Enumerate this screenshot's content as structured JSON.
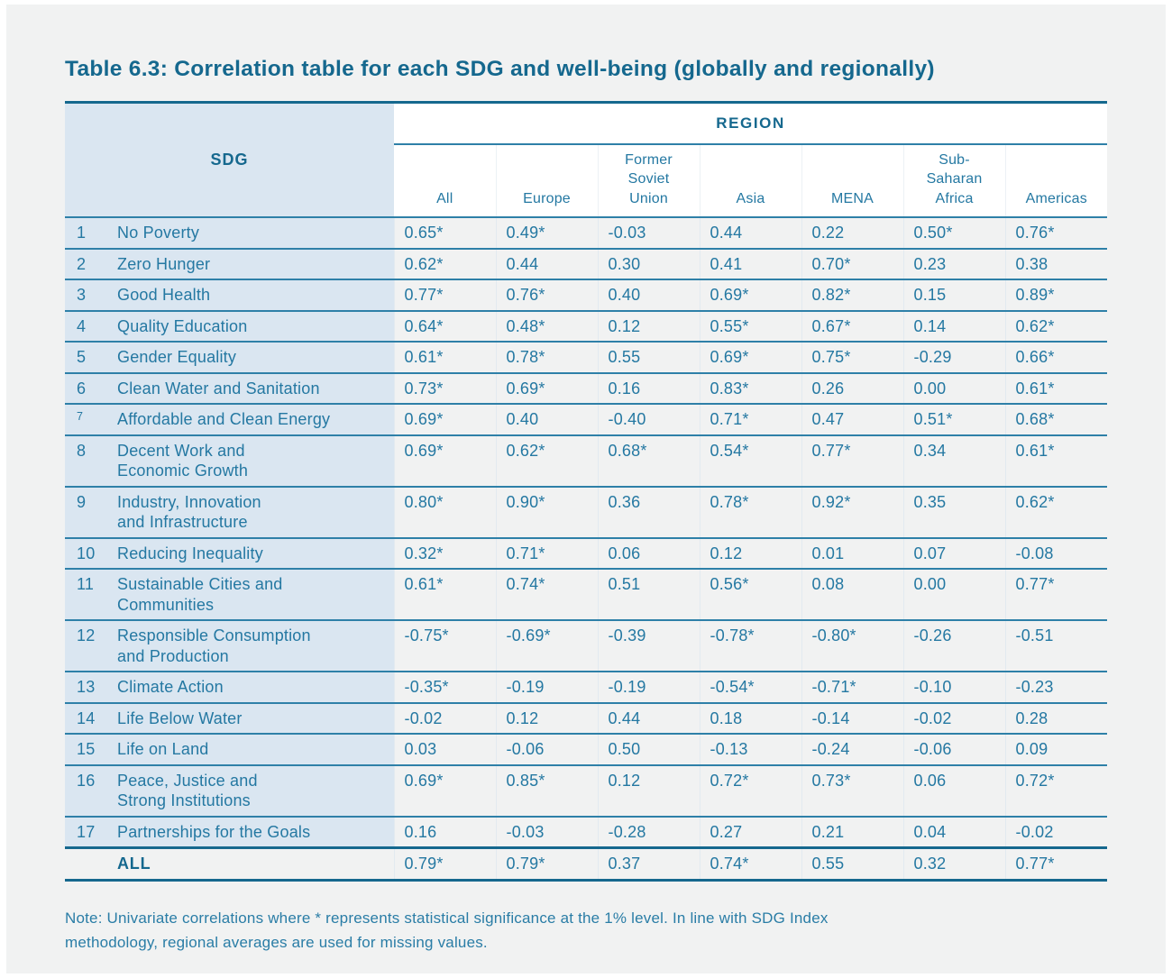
{
  "page": {
    "title": "Table 6.3: Correlation table for each SDG and well-being (globally and regionally)",
    "note": "Note: Univariate correlations where * represents statistical significance at the 1% level. In line with SDG Index\nmethodology, regional averages are used for missing values."
  },
  "colors": {
    "accent-dark": "#15688e",
    "text-teal": "#2478a2",
    "line-teal": "#2e80a8",
    "col-blue": "#dae6f1",
    "page-bg": "#f1f2f2",
    "header-bg": "#ffffff",
    "hairline": "#e2eaf0"
  },
  "table": {
    "sdg_label": "SDG",
    "region_label": "REGION",
    "columns": [
      "All",
      "Europe",
      "Former\nSoviet\nUnion",
      "Asia",
      "MENA",
      "Sub-\nSaharan\nAfrica",
      "Americas"
    ],
    "rows": [
      {
        "num": "1",
        "name": "No Poverty",
        "values": [
          "0.65*",
          "0.49*",
          "-0.03",
          "0.44",
          "0.22",
          "0.50*",
          "0.76*"
        ]
      },
      {
        "num": "2",
        "name": "Zero Hunger",
        "values": [
          "0.62*",
          "0.44",
          "0.30",
          "0.41",
          "0.70*",
          "0.23",
          "0.38"
        ]
      },
      {
        "num": "3",
        "name": "Good Health",
        "values": [
          "0.77*",
          "0.76*",
          "0.40",
          "0.69*",
          "0.82*",
          "0.15",
          "0.89*"
        ]
      },
      {
        "num": "4",
        "name": "Quality Education",
        "values": [
          "0.64*",
          "0.48*",
          "0.12",
          "0.55*",
          "0.67*",
          "0.14",
          "0.62*"
        ]
      },
      {
        "num": "5",
        "name": "Gender Equality",
        "values": [
          "0.61*",
          "0.78*",
          "0.55",
          "0.69*",
          "0.75*",
          "-0.29",
          "0.66*"
        ]
      },
      {
        "num": "6",
        "name": "Clean Water and Sanitation",
        "values": [
          "0.73*",
          "0.69*",
          "0.16",
          "0.83*",
          "0.26",
          "0.00",
          "0.61*"
        ]
      },
      {
        "num": "7",
        "superscript": true,
        "name": "Affordable and Clean Energy",
        "values": [
          "0.69*",
          "0.40",
          "-0.40",
          "0.71*",
          "0.47",
          "0.51*",
          "0.68*"
        ]
      },
      {
        "num": "8",
        "name": "Decent Work and\nEconomic Growth",
        "values": [
          "0.69*",
          "0.62*",
          "0.68*",
          "0.54*",
          "0.77*",
          "0.34",
          "0.61*"
        ]
      },
      {
        "num": "9",
        "name": "Industry, Innovation\nand Infrastructure",
        "values": [
          "0.80*",
          "0.90*",
          "0.36",
          "0.78*",
          "0.92*",
          "0.35",
          "0.62*"
        ]
      },
      {
        "num": "10",
        "name": "Reducing Inequality",
        "values": [
          "0.32*",
          "0.71*",
          "0.06",
          "0.12",
          "0.01",
          "0.07",
          "-0.08"
        ]
      },
      {
        "num": "11",
        "name": "Sustainable Cities and\nCommunities",
        "values": [
          "0.61*",
          "0.74*",
          "0.51",
          "0.56*",
          "0.08",
          "0.00",
          "0.77*"
        ]
      },
      {
        "num": "12",
        "name": "Responsible Consumption\nand Production",
        "values": [
          "-0.75*",
          "-0.69*",
          "-0.39",
          "-0.78*",
          "-0.80*",
          "-0.26",
          "-0.51"
        ]
      },
      {
        "num": "13",
        "name": "Climate Action",
        "values": [
          "-0.35*",
          "-0.19",
          "-0.19",
          "-0.54*",
          "-0.71*",
          "-0.10",
          "-0.23"
        ]
      },
      {
        "num": "14",
        "name": "Life Below Water",
        "values": [
          "-0.02",
          "0.12",
          "0.44",
          "0.18",
          "-0.14",
          "-0.02",
          "0.28"
        ]
      },
      {
        "num": "15",
        "name": "Life on Land",
        "values": [
          "0.03",
          "-0.06",
          "0.50",
          "-0.13",
          "-0.24",
          "-0.06",
          "0.09"
        ]
      },
      {
        "num": "16",
        "name": "Peace, Justice and\nStrong Institutions",
        "values": [
          "0.69*",
          "0.85*",
          "0.12",
          "0.72*",
          "0.73*",
          "0.06",
          "0.72*"
        ]
      },
      {
        "num": "17",
        "name": "Partnerships for the Goals",
        "values": [
          "0.16",
          "-0.03",
          "-0.28",
          "0.27",
          "0.21",
          "0.04",
          "-0.02"
        ]
      }
    ],
    "all_row": {
      "label": "ALL",
      "values": [
        "0.79*",
        "0.79*",
        "0.37",
        "0.74*",
        "0.55",
        "0.32",
        "0.77*"
      ]
    }
  }
}
